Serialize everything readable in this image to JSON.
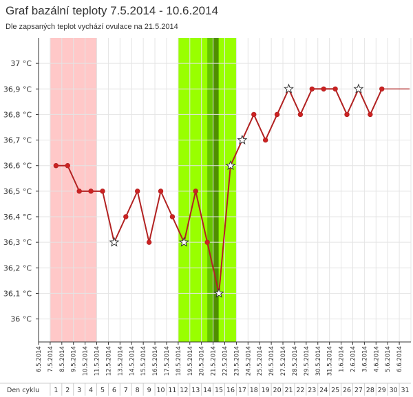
{
  "title": "Graf bazální teploty 7.5.2014 - 10.6.2014",
  "subtitle": "Dle zapsaných teplot vychází ovulace na 21.5.2014",
  "colors": {
    "line": "#b22222",
    "point": "#cc2222",
    "menstruation_band": "#ffc8c8",
    "fertile_band": "#99ff00",
    "fertile_band_inner": "#66c400",
    "ovulation_day": "#4f8f00",
    "grid": "#e4e4e4",
    "axis": "#333333"
  },
  "chart_data": {
    "type": "line",
    "y_unit": "°C",
    "ylim": [
      35.91,
      37.1
    ],
    "yticks": [
      "37 °C",
      "36,9 °C",
      "36,8 °C",
      "36,7 °C",
      "36,6 °C",
      "36,5 °C",
      "36,4 °C",
      "36,3 °C",
      "36,2 °C",
      "36,1 °C",
      "36 °C"
    ],
    "ytick_values": [
      37.0,
      36.9,
      36.8,
      36.7,
      36.6,
      36.5,
      36.4,
      36.3,
      36.2,
      36.1,
      36.0
    ],
    "dates": [
      "6.5.2014",
      "7.5.2014",
      "8.5.2014",
      "9.5.2014",
      "10.5.2014",
      "11.5.2014",
      "12.5.2014",
      "13.5.2014",
      "14.5.2014",
      "15.5.2014",
      "16.5.2014",
      "17.5.2014",
      "18.5.2014",
      "19.5.2014",
      "20.5.2014",
      "21.5.2014",
      "22.5.2014",
      "23.5.2014",
      "24.5.2014",
      "25.5.2014",
      "26.5.2014",
      "27.5.2014",
      "28.5.2014",
      "29.5.2014",
      "30.5.2014",
      "31.5.2014",
      "1.6.2014",
      "2.6.2014",
      "3.6.2014",
      "4.6.2014",
      "5.6.2014",
      "6.6.2014"
    ],
    "cycle_day_label": "Den cyklu",
    "cycle_days": [
      "1",
      "2",
      "3",
      "4",
      "5",
      "6",
      "7",
      "8",
      "9",
      "10",
      "11",
      "12",
      "13",
      "14",
      "15",
      "16",
      "17",
      "18",
      "19",
      "20",
      "21",
      "22",
      "23",
      "24",
      "25",
      "26",
      "27",
      "28",
      "29",
      "30",
      "31"
    ],
    "series": [
      {
        "x": [
          "7.5.2014",
          "8.5.2014",
          "9.5.2014",
          "10.5.2014",
          "11.5.2014",
          "12.5.2014",
          "13.5.2014",
          "14.5.2014",
          "15.5.2014",
          "16.5.2014",
          "17.5.2014",
          "18.5.2014",
          "19.5.2014",
          "20.5.2014",
          "21.5.2014",
          "22.5.2014",
          "23.5.2014",
          "24.5.2014",
          "25.5.2014",
          "26.5.2014",
          "27.5.2014",
          "28.5.2014",
          "29.5.2014",
          "30.5.2014",
          "31.5.2014",
          "1.6.2014",
          "2.6.2014",
          "3.6.2014",
          "4.6.2014"
        ],
        "values": [
          36.6,
          36.6,
          36.5,
          36.5,
          36.5,
          36.3,
          36.4,
          36.5,
          36.3,
          36.5,
          36.4,
          36.3,
          36.5,
          36.3,
          36.1,
          36.6,
          36.7,
          36.8,
          36.7,
          36.8,
          36.9,
          36.8,
          36.9,
          36.9,
          36.9,
          36.8,
          36.9,
          36.8,
          36.9
        ],
        "star_markers": [
          "12.5.2014",
          "18.5.2014",
          "21.5.2014",
          "22.5.2014",
          "23.5.2014",
          "27.5.2014",
          "2.6.2014"
        ]
      }
    ],
    "continuation_line": {
      "from": "4.6.2014",
      "to": "6.6.2014",
      "value": 36.9
    },
    "bands": [
      {
        "kind": "menstruation",
        "from": "7.5.2014",
        "to": "10.5.2014"
      },
      {
        "kind": "fertile",
        "from": "18.5.2014",
        "to": "22.5.2014"
      },
      {
        "kind": "fertile-peak",
        "from": "20.5.2014",
        "to": "21.5.2014"
      },
      {
        "kind": "ovulation",
        "from": "21.5.2014",
        "to": "21.5.2014"
      }
    ],
    "grid": true
  }
}
